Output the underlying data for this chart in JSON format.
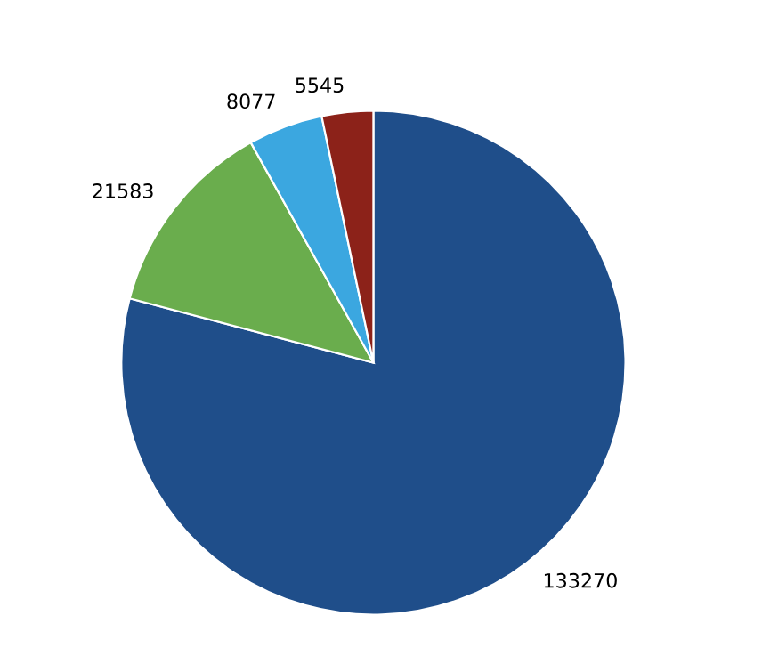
{
  "chart_data": {
    "type": "pie",
    "categories": [
      null,
      null,
      null,
      null
    ],
    "values": [
      133270,
      21583,
      8077,
      5545
    ],
    "colors": [
      "#1f4e8a",
      "#6aad4d",
      "#3ba7e0",
      "#8c2219"
    ],
    "data_labels": true,
    "legend": false
  }
}
